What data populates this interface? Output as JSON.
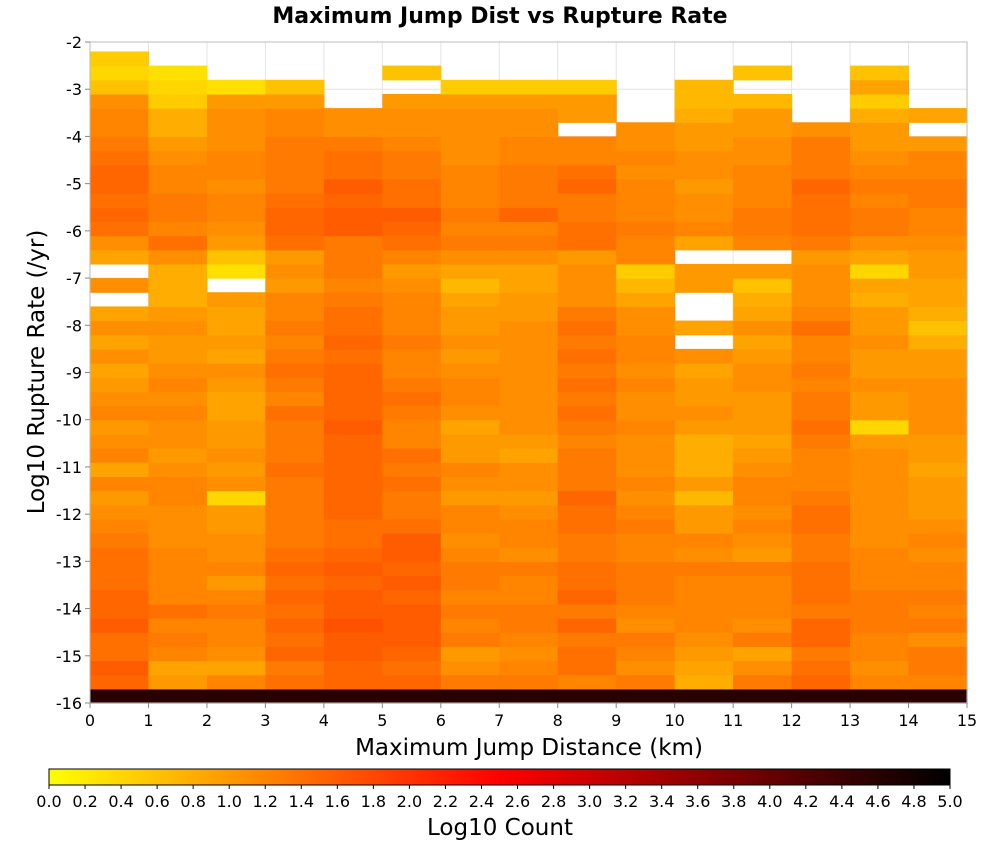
{
  "chart_data": {
    "type": "heatmap",
    "title": "Maximum Jump Dist vs Rupture Rate",
    "xlabel": "Maximum Jump Distance (km)",
    "ylabel": "Log10 Rupture Rate (/yr)",
    "colorbar_label": "Log10 Count",
    "xlim": [
      0,
      15
    ],
    "ylim": [
      -16,
      -2
    ],
    "x_ticks": [
      "0",
      "1",
      "2",
      "3",
      "4",
      "5",
      "6",
      "7",
      "8",
      "9",
      "10",
      "11",
      "12",
      "13",
      "14",
      "15"
    ],
    "y_ticks": [
      "-2",
      "-3",
      "-4",
      "-5",
      "-6",
      "-7",
      "-8",
      "-9",
      "-10",
      "-11",
      "-12",
      "-13",
      "-14",
      "-15",
      "-16"
    ],
    "colorbar_range": [
      0,
      5
    ],
    "colorbar_ticks": [
      "0.0",
      "0.2",
      "0.4",
      "0.6",
      "0.8",
      "1.0",
      "1.2",
      "1.4",
      "1.6",
      "1.8",
      "2.0",
      "2.2",
      "2.4",
      "2.6",
      "2.8",
      "3.0",
      "3.2",
      "3.4",
      "3.6",
      "3.8",
      "4.0",
      "4.2",
      "4.4",
      "4.6",
      "4.8",
      "5.0"
    ],
    "colormap": [
      "#ffff00",
      "#ffaa00",
      "#ff5500",
      "#ff0000",
      "#aa0000",
      "#550000",
      "#000000"
    ],
    "grid": true,
    "x_bin_edges": [
      0,
      1,
      2,
      3,
      4,
      5,
      6,
      7,
      8,
      9,
      10,
      11,
      12,
      13,
      14,
      15
    ],
    "y_bin_start": -16,
    "y_bin_width": 0.3,
    "bottom_row_note": "row -16.0 to -15.7 dark (~4.5)",
    "grid_values": [
      [
        4.6,
        4.6,
        4.6,
        4.6,
        4.6,
        4.6,
        4.6,
        4.6,
        4.6,
        4.6,
        4.6,
        4.6,
        4.6,
        4.6,
        4.6
      ],
      [
        1.5,
        1.0,
        1.2,
        1.4,
        1.5,
        1.5,
        1.3,
        1.3,
        1.2,
        1.3,
        0.8,
        1.3,
        1.5,
        1.2,
        1.2
      ],
      [
        1.6,
        0.9,
        0.9,
        1.3,
        1.5,
        1.4,
        1.1,
        1.2,
        1.4,
        1.1,
        0.9,
        1.1,
        1.4,
        1.1,
        1.3
      ],
      [
        1.4,
        1.2,
        1.1,
        1.5,
        1.6,
        1.5,
        1.0,
        1.1,
        1.4,
        1.2,
        1.0,
        0.9,
        1.3,
        1.2,
        1.3
      ],
      [
        1.4,
        1.3,
        1.2,
        1.4,
        1.6,
        1.6,
        1.3,
        1.2,
        1.3,
        1.3,
        1.1,
        1.3,
        1.5,
        1.2,
        1.1
      ],
      [
        1.6,
        1.2,
        1.2,
        1.5,
        1.7,
        1.6,
        1.2,
        1.3,
        1.5,
        1.1,
        1.2,
        1.1,
        1.5,
        1.3,
        1.3
      ],
      [
        1.5,
        1.4,
        1.3,
        1.4,
        1.6,
        1.6,
        1.3,
        1.3,
        1.3,
        1.2,
        1.2,
        1.2,
        1.3,
        1.3,
        1.2
      ],
      [
        1.5,
        1.2,
        1.2,
        1.5,
        1.6,
        1.5,
        1.2,
        1.2,
        1.5,
        1.3,
        1.2,
        1.2,
        1.4,
        1.3,
        1.3
      ],
      [
        1.4,
        1.2,
        1.0,
        1.4,
        1.5,
        1.6,
        1.3,
        1.2,
        1.4,
        1.3,
        1.2,
        1.2,
        1.4,
        1.2,
        1.2
      ],
      [
        1.4,
        1.2,
        1.2,
        1.5,
        1.6,
        1.5,
        1.3,
        1.3,
        1.4,
        1.3,
        1.3,
        1.3,
        1.4,
        1.2,
        1.2
      ],
      [
        1.4,
        1.2,
        1.1,
        1.4,
        1.5,
        1.6,
        1.2,
        1.1,
        1.3,
        1.2,
        1.1,
        1.0,
        1.3,
        1.2,
        1.1
      ],
      [
        1.3,
        1.1,
        1.1,
        1.3,
        1.4,
        1.6,
        1.1,
        1.2,
        1.3,
        1.2,
        1.2,
        1.1,
        1.3,
        1.1,
        1.2
      ],
      [
        1.2,
        1.1,
        1.0,
        1.3,
        1.4,
        1.4,
        1.2,
        1.2,
        1.4,
        1.3,
        1.0,
        1.2,
        1.4,
        1.1,
        1.1
      ],
      [
        1.1,
        1.1,
        1.0,
        1.3,
        1.5,
        1.3,
        1.2,
        1.1,
        1.4,
        1.2,
        1.0,
        1.1,
        1.4,
        1.1,
        1.0
      ],
      [
        1.0,
        1.2,
        0.4,
        1.3,
        1.5,
        1.3,
        1.0,
        1.0,
        1.5,
        1.1,
        0.7,
        1.2,
        1.3,
        1.1,
        1.0
      ],
      [
        1.2,
        1.2,
        1.1,
        1.3,
        1.5,
        1.4,
        1.1,
        1.1,
        1.3,
        1.2,
        1.0,
        1.2,
        1.2,
        1.1,
        1.0
      ],
      [
        0.9,
        1.1,
        1.0,
        1.4,
        1.5,
        1.3,
        1.2,
        1.1,
        1.3,
        1.1,
        0.8,
        1.1,
        1.2,
        1.1,
        0.9
      ],
      [
        1.2,
        1.0,
        1.1,
        1.3,
        1.5,
        1.4,
        1.0,
        0.9,
        1.3,
        1.1,
        0.8,
        1.0,
        1.2,
        1.1,
        1.0
      ],
      [
        1.1,
        1.1,
        1.0,
        1.3,
        1.5,
        1.2,
        1.0,
        1.0,
        1.2,
        1.1,
        0.8,
        0.9,
        1.3,
        1.0,
        1.0
      ],
      [
        1.0,
        1.1,
        1.0,
        1.3,
        1.6,
        1.2,
        0.9,
        1.1,
        1.3,
        1.2,
        1.0,
        1.0,
        1.4,
        0.4,
        1.1
      ],
      [
        1.2,
        1.2,
        0.9,
        1.4,
        1.5,
        1.3,
        1.1,
        1.1,
        1.4,
        1.1,
        1.1,
        1.0,
        1.3,
        1.0,
        1.1
      ],
      [
        1.1,
        1.1,
        0.9,
        1.2,
        1.5,
        1.4,
        1.2,
        1.1,
        1.3,
        1.1,
        1.0,
        1.0,
        1.3,
        1.0,
        1.1
      ],
      [
        1.0,
        1.2,
        1.0,
        1.3,
        1.5,
        1.3,
        1.2,
        1.1,
        1.4,
        1.2,
        1.0,
        1.1,
        1.2,
        1.1,
        1.1
      ],
      [
        0.9,
        1.1,
        1.1,
        1.4,
        1.5,
        1.2,
        1.1,
        1.1,
        1.3,
        1.1,
        0.9,
        1.1,
        1.3,
        1.0,
        1.0
      ],
      [
        1.1,
        1.0,
        0.9,
        1.3,
        1.4,
        1.2,
        1.0,
        1.1,
        1.4,
        1.2,
        1.1,
        1.0,
        1.2,
        1.0,
        1.0
      ],
      [
        0.9,
        1.0,
        1.0,
        1.2,
        1.5,
        1.3,
        1.1,
        1.1,
        1.3,
        1.2,
        -1,
        0.9,
        1.2,
        1.1,
        0.8
      ],
      [
        1.1,
        1.1,
        0.9,
        1.3,
        1.4,
        1.2,
        1.0,
        1.1,
        1.4,
        1.1,
        0.9,
        1.1,
        1.4,
        1.0,
        0.6
      ],
      [
        0.9,
        1.0,
        0.9,
        1.2,
        1.4,
        1.2,
        1.0,
        1.0,
        1.3,
        1.1,
        -1,
        0.9,
        1.2,
        1.0,
        0.8
      ],
      [
        -1,
        0.8,
        1.0,
        1.2,
        1.3,
        1.2,
        0.9,
        1.0,
        1.1,
        0.9,
        -1,
        0.8,
        1.1,
        0.8,
        0.9
      ],
      [
        1.1,
        0.8,
        -1,
        1.0,
        1.2,
        1.1,
        0.7,
        0.9,
        1.1,
        0.7,
        1.0,
        0.6,
        1.1,
        0.9,
        0.9
      ],
      [
        -1,
        0.8,
        0.3,
        1.1,
        1.3,
        1.0,
        0.9,
        0.9,
        1.1,
        0.5,
        1.0,
        1.0,
        1.1,
        0.4,
        1.0
      ],
      [
        0.9,
        1.1,
        0.6,
        1.0,
        1.3,
        1.2,
        1.1,
        1.1,
        1.0,
        1.2,
        -1,
        -1,
        1.0,
        0.9,
        1.0
      ],
      [
        1.1,
        1.4,
        1.0,
        1.4,
        1.3,
        1.4,
        1.3,
        1.3,
        1.4,
        1.2,
        0.9,
        1.2,
        1.3,
        1.1,
        1.1
      ],
      [
        1.4,
        1.2,
        1.1,
        1.5,
        1.6,
        1.5,
        1.2,
        1.2,
        1.4,
        1.3,
        1.2,
        1.3,
        1.4,
        1.3,
        1.2
      ],
      [
        1.5,
        1.3,
        1.2,
        1.5,
        1.6,
        1.6,
        1.3,
        1.5,
        1.3,
        1.2,
        1.1,
        1.3,
        1.4,
        1.3,
        1.2
      ],
      [
        1.4,
        1.3,
        1.2,
        1.4,
        1.5,
        1.4,
        1.2,
        1.3,
        1.3,
        1.2,
        1.1,
        1.2,
        1.4,
        1.2,
        1.3
      ],
      [
        1.5,
        1.2,
        1.1,
        1.3,
        1.6,
        1.4,
        1.2,
        1.3,
        1.5,
        1.2,
        1.0,
        1.2,
        1.5,
        1.3,
        1.3
      ],
      [
        1.5,
        1.2,
        1.2,
        1.3,
        1.4,
        1.3,
        1.2,
        1.3,
        1.4,
        1.1,
        1.1,
        1.2,
        1.3,
        1.2,
        1.2
      ],
      [
        1.4,
        1.1,
        1.2,
        1.3,
        1.4,
        1.3,
        1.1,
        1.2,
        1.2,
        1.2,
        1.1,
        1.1,
        1.3,
        1.1,
        1.2
      ],
      [
        1.3,
        1.0,
        1.1,
        1.3,
        1.3,
        1.2,
        1.1,
        1.2,
        1.2,
        1.1,
        1.0,
        1.1,
        1.3,
        1.0,
        1.0
      ],
      [
        1.2,
        0.8,
        1.1,
        1.2,
        1.1,
        1.1,
        1.1,
        1.1,
        -1,
        1.1,
        1.0,
        1.0,
        1.1,
        1.0,
        -1
      ],
      [
        1.2,
        0.8,
        1.1,
        1.2,
        1.1,
        1.1,
        1.1,
        1.1,
        1.0,
        -1,
        0.8,
        1.0,
        -1,
        0.8,
        0.9
      ],
      [
        1.1,
        0.5,
        1.0,
        1.0,
        -1,
        1.0,
        1.0,
        1.0,
        1.0,
        -1,
        0.7,
        0.7,
        -1,
        0.5,
        -1
      ],
      [
        0.6,
        0.4,
        0.3,
        0.6,
        -1,
        -1,
        0.5,
        0.5,
        0.5,
        -1,
        0.7,
        -1,
        -1,
        0.9,
        -1
      ],
      [
        0.4,
        0.3,
        -1,
        -1,
        -1,
        0.6,
        -1,
        -1,
        -1,
        -1,
        -1,
        0.6,
        -1,
        0.6,
        -1
      ],
      [
        0.5,
        -1,
        -1,
        -1,
        -1,
        -1,
        -1,
        -1,
        -1,
        -1,
        -1,
        -1,
        -1,
        -1,
        -1
      ]
    ]
  }
}
